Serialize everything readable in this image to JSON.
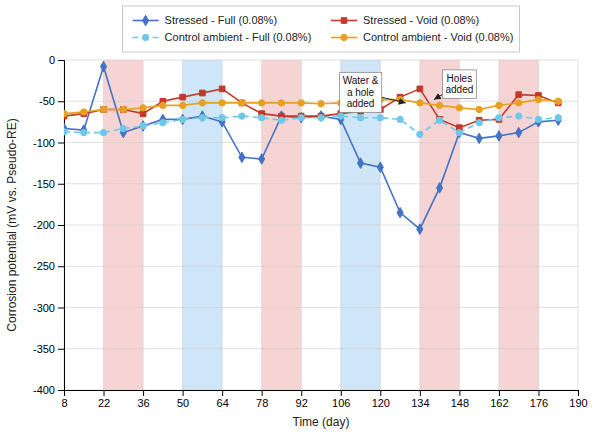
{
  "chart_data": {
    "type": "line",
    "xlabel": "Time (day)",
    "ylabel": "Corrosion potential (mV vs. Pseudo-RE)",
    "xlim": [
      8,
      190
    ],
    "ylim": [
      -400,
      0
    ],
    "xticks": [
      8,
      22,
      36,
      50,
      64,
      78,
      92,
      106,
      120,
      134,
      148,
      162,
      176,
      190
    ],
    "yticks": [
      0,
      -50,
      -100,
      -150,
      -200,
      -250,
      -300,
      -350,
      -400
    ],
    "grid": true,
    "legend": "top",
    "bands": [
      {
        "xmin": 22,
        "xmax": 36,
        "color": "#f2b8b8"
      },
      {
        "xmin": 50,
        "xmax": 64,
        "color": "#aed6f1"
      },
      {
        "xmin": 78,
        "xmax": 92,
        "color": "#f2b8b8"
      },
      {
        "xmin": 106,
        "xmax": 120,
        "color": "#aed6f1"
      },
      {
        "xmin": 134,
        "xmax": 148,
        "color": "#f2b8b8"
      },
      {
        "xmin": 162,
        "xmax": 176,
        "color": "#f2b8b8"
      }
    ],
    "x": [
      8,
      15,
      22,
      29,
      36,
      43,
      50,
      57,
      64,
      71,
      78,
      85,
      92,
      99,
      106,
      113,
      120,
      127,
      134,
      141,
      148,
      155,
      162,
      169,
      176,
      183
    ],
    "series": [
      {
        "name": "Stressed - Full (0.08%)",
        "color": "#4472C4",
        "marker": "diamond",
        "line_style": "solid",
        "values": [
          -83,
          -85,
          -8,
          -88,
          -80,
          -72,
          -72,
          -68,
          -75,
          -118,
          -120,
          -68,
          -70,
          -68,
          -72,
          -125,
          -130,
          -185,
          -205,
          -155,
          -88,
          -95,
          -92,
          -88,
          -75,
          -73
        ]
      },
      {
        "name": "Stressed - Void (0.08%)",
        "color": "#C0392B",
        "marker": "square",
        "line_style": "solid",
        "values": [
          -68,
          -65,
          -60,
          -60,
          -65,
          -50,
          -45,
          -40,
          -35,
          -52,
          -65,
          -68,
          -68,
          -68,
          -65,
          -62,
          -60,
          -45,
          -35,
          -72,
          -82,
          -73,
          -72,
          -42,
          -43,
          -52
        ]
      },
      {
        "name": "Control ambient - Full (0.08%)",
        "color": "#70C8E8",
        "marker": "circle",
        "line_style": "dashed",
        "values": [
          -87,
          -88,
          -88,
          -83,
          -80,
          -76,
          -72,
          -70,
          -70,
          -68,
          -70,
          -73,
          -70,
          -70,
          -68,
          -70,
          -70,
          -72,
          -90,
          -73,
          -88,
          -76,
          -70,
          -68,
          -72,
          -70
        ]
      },
      {
        "name": "Control ambient - Void (0.08%)",
        "color": "#E8A020",
        "marker": "circle",
        "line_style": "solid",
        "values": [
          -65,
          -63,
          -60,
          -60,
          -58,
          -55,
          -55,
          -52,
          -52,
          -52,
          -52,
          -52,
          -52,
          -53,
          -52,
          -50,
          -48,
          -48,
          -52,
          -55,
          -58,
          -60,
          -55,
          -52,
          -48,
          -50
        ]
      }
    ],
    "annotations": [
      {
        "text": "Water &\na hole\nadded",
        "x": 129,
        "y": -52,
        "text_x": 113,
        "text_y": -18
      },
      {
        "text": "Holes\nadded",
        "x": 139,
        "y": -48,
        "text_x": 148,
        "text_y": -15
      }
    ]
  }
}
